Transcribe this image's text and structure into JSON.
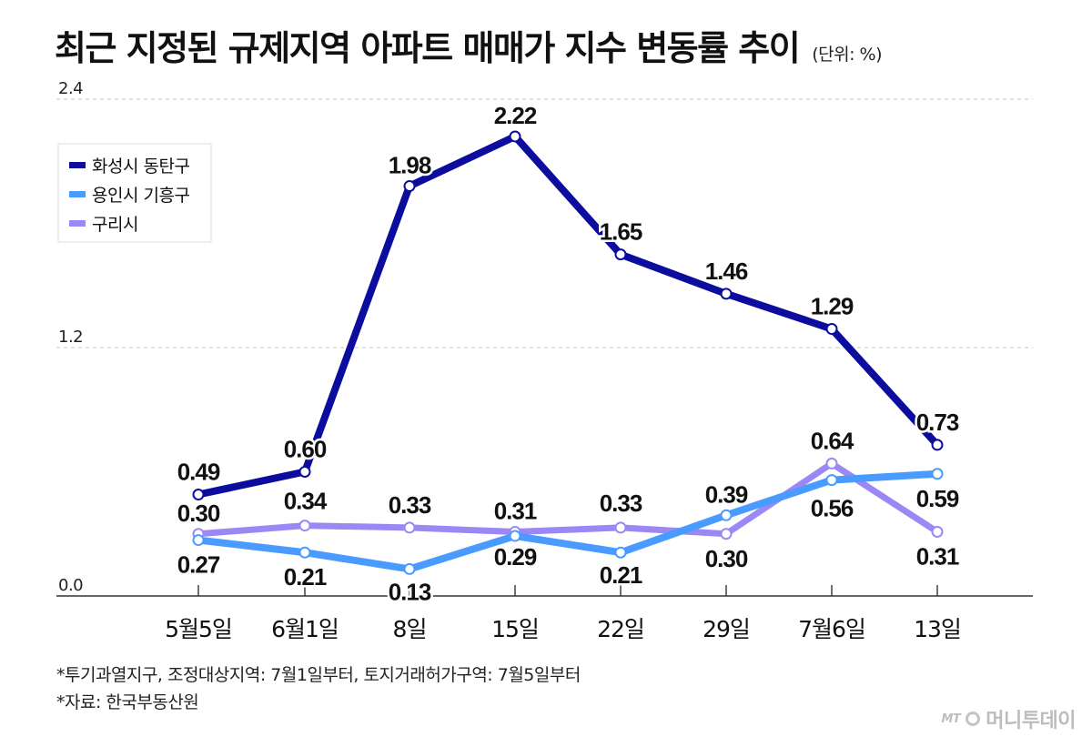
{
  "header": {
    "title": "최근 지정된 규제지역 아파트 매매가 지수 변동률 추이",
    "unit": "(단위: %)"
  },
  "colors": {
    "series_1": "#0c0c9e",
    "series_2": "#4a9bff",
    "series_3": "#9b88f5",
    "grid": "#cfcfcf",
    "axis": "#333333"
  },
  "chart_data": {
    "type": "line",
    "categories": [
      "5월5일",
      "6월1일",
      "8일",
      "15일",
      "22일",
      "29일",
      "7월6일",
      "13일"
    ],
    "series": [
      {
        "name": "화성시 동탄구",
        "values": [
          0.49,
          0.6,
          1.98,
          2.22,
          1.65,
          1.46,
          1.29,
          0.73
        ]
      },
      {
        "name": "용인시 기흥구",
        "values": [
          0.27,
          0.21,
          0.13,
          0.29,
          0.21,
          0.39,
          0.56,
          0.59
        ]
      },
      {
        "name": "구리시",
        "values": [
          0.3,
          0.34,
          0.33,
          0.31,
          0.33,
          0.3,
          0.64,
          0.31
        ]
      }
    ],
    "y_ticks": [
      "0.0",
      "1.2",
      "2.4"
    ],
    "ylim": [
      0,
      2.4
    ],
    "grid": true,
    "legend_position": "top-left"
  },
  "notes": {
    "line1": "*투기과열지구, 조정대상지역: 7월1일부터, 토지거래허가구역: 7월5일부터",
    "line2": "*자료: 한국부동산원"
  },
  "brand": {
    "mark": "MT",
    "name": "머니투데이"
  }
}
